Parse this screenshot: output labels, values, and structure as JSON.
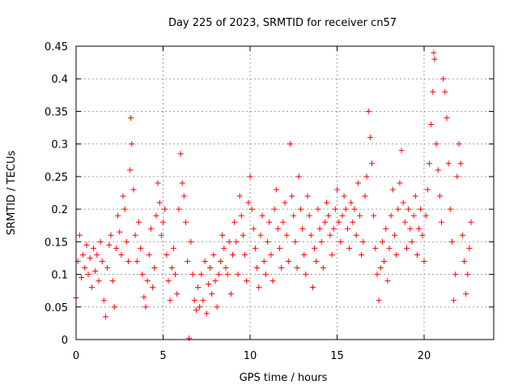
{
  "chart_data": {
    "type": "scatter",
    "title": "Day 225 of 2023, SRMTID for receiver cn57",
    "xlabel": "GPS time / hours",
    "ylabel": "SRMTID / TECUs",
    "xlim": [
      0,
      24
    ],
    "ylim": [
      0,
      0.45
    ],
    "xticks": [
      0,
      5,
      10,
      15,
      20
    ],
    "xtick_labels": [
      "0",
      "5",
      "10",
      "15",
      "20"
    ],
    "yticks": [
      0,
      0.05,
      0.1,
      0.15,
      0.2,
      0.25,
      0.3,
      0.35,
      0.4,
      0.45
    ],
    "ytick_labels": [
      "0",
      "0.05",
      "0.1",
      "0.15",
      "0.2",
      "0.25",
      "0.3",
      "0.35",
      "0.4",
      "0.45"
    ],
    "grid": true,
    "marker": "+",
    "marker_color": "#ff0000",
    "series": [
      {
        "name": "SRMTID",
        "points": [
          [
            0.0,
            0.064
          ],
          [
            0.1,
            0.12
          ],
          [
            0.2,
            0.16
          ],
          [
            0.3,
            0.095
          ],
          [
            0.4,
            0.13
          ],
          [
            0.5,
            0.11
          ],
          [
            0.6,
            0.145
          ],
          [
            0.7,
            0.1
          ],
          [
            0.8,
            0.125
          ],
          [
            0.9,
            0.08
          ],
          [
            1.0,
            0.14
          ],
          [
            1.1,
            0.105
          ],
          [
            1.2,
            0.13
          ],
          [
            1.3,
            0.09
          ],
          [
            1.4,
            0.15
          ],
          [
            1.5,
            0.12
          ],
          [
            1.6,
            0.06
          ],
          [
            1.7,
            0.035
          ],
          [
            1.8,
            0.11
          ],
          [
            1.9,
            0.145
          ],
          [
            2.0,
            0.16
          ],
          [
            2.1,
            0.09
          ],
          [
            2.2,
            0.05
          ],
          [
            2.3,
            0.14
          ],
          [
            2.4,
            0.19
          ],
          [
            2.5,
            0.165
          ],
          [
            2.6,
            0.13
          ],
          [
            2.7,
            0.22
          ],
          [
            2.8,
            0.2
          ],
          [
            2.9,
            0.15
          ],
          [
            3.0,
            0.12
          ],
          [
            3.1,
            0.26
          ],
          [
            3.15,
            0.34
          ],
          [
            3.2,
            0.3
          ],
          [
            3.3,
            0.23
          ],
          [
            3.4,
            0.16
          ],
          [
            3.5,
            0.12
          ],
          [
            3.6,
            0.18
          ],
          [
            3.7,
            0.14
          ],
          [
            3.8,
            0.1
          ],
          [
            3.9,
            0.065
          ],
          [
            4.0,
            0.05
          ],
          [
            4.1,
            0.09
          ],
          [
            4.2,
            0.13
          ],
          [
            4.3,
            0.17
          ],
          [
            4.4,
            0.08
          ],
          [
            4.5,
            0.11
          ],
          [
            4.6,
            0.19
          ],
          [
            4.7,
            0.24
          ],
          [
            4.8,
            0.21
          ],
          [
            4.9,
            0.16
          ],
          [
            5.0,
            0.18
          ],
          [
            5.1,
            0.2
          ],
          [
            5.2,
            0.13
          ],
          [
            5.3,
            0.09
          ],
          [
            5.4,
            0.06
          ],
          [
            5.5,
            0.11
          ],
          [
            5.6,
            0.14
          ],
          [
            5.7,
            0.1
          ],
          [
            5.8,
            0.07
          ],
          [
            5.9,
            0.2
          ],
          [
            6.0,
            0.285
          ],
          [
            6.1,
            0.24
          ],
          [
            6.2,
            0.22
          ],
          [
            6.3,
            0.18
          ],
          [
            6.4,
            0.12
          ],
          [
            6.5,
            0.002
          ],
          [
            6.6,
            0.15
          ],
          [
            6.7,
            0.1
          ],
          [
            6.8,
            0.06
          ],
          [
            6.9,
            0.045
          ],
          [
            7.0,
            0.08
          ],
          [
            7.1,
            0.05
          ],
          [
            7.2,
            0.1
          ],
          [
            7.3,
            0.06
          ],
          [
            7.4,
            0.12
          ],
          [
            7.5,
            0.04
          ],
          [
            7.6,
            0.085
          ],
          [
            7.7,
            0.11
          ],
          [
            7.8,
            0.07
          ],
          [
            7.9,
            0.13
          ],
          [
            8.0,
            0.09
          ],
          [
            8.1,
            0.05
          ],
          [
            8.2,
            0.1
          ],
          [
            8.3,
            0.12
          ],
          [
            8.4,
            0.16
          ],
          [
            8.5,
            0.14
          ],
          [
            8.6,
            0.11
          ],
          [
            8.7,
            0.1
          ],
          [
            8.8,
            0.15
          ],
          [
            8.9,
            0.07
          ],
          [
            9.0,
            0.13
          ],
          [
            9.1,
            0.18
          ],
          [
            9.2,
            0.15
          ],
          [
            9.3,
            0.1
          ],
          [
            9.4,
            0.22
          ],
          [
            9.5,
            0.19
          ],
          [
            9.6,
            0.16
          ],
          [
            9.7,
            0.13
          ],
          [
            9.8,
            0.09
          ],
          [
            9.9,
            0.21
          ],
          [
            10.0,
            0.25
          ],
          [
            10.1,
            0.2
          ],
          [
            10.2,
            0.17
          ],
          [
            10.3,
            0.14
          ],
          [
            10.4,
            0.11
          ],
          [
            10.5,
            0.08
          ],
          [
            10.6,
            0.16
          ],
          [
            10.7,
            0.19
          ],
          [
            10.8,
            0.12
          ],
          [
            10.9,
            0.1
          ],
          [
            11.0,
            0.15
          ],
          [
            11.1,
            0.18
          ],
          [
            11.2,
            0.13
          ],
          [
            11.3,
            0.09
          ],
          [
            11.4,
            0.2
          ],
          [
            11.5,
            0.23
          ],
          [
            11.6,
            0.17
          ],
          [
            11.7,
            0.14
          ],
          [
            11.8,
            0.11
          ],
          [
            11.9,
            0.18
          ],
          [
            12.0,
            0.21
          ],
          [
            12.1,
            0.16
          ],
          [
            12.2,
            0.12
          ],
          [
            12.3,
            0.3
          ],
          [
            12.4,
            0.22
          ],
          [
            12.5,
            0.19
          ],
          [
            12.6,
            0.15
          ],
          [
            12.7,
            0.11
          ],
          [
            12.8,
            0.25
          ],
          [
            12.9,
            0.2
          ],
          [
            13.0,
            0.17
          ],
          [
            13.1,
            0.13
          ],
          [
            13.2,
            0.1
          ],
          [
            13.3,
            0.22
          ],
          [
            13.4,
            0.19
          ],
          [
            13.5,
            0.16
          ],
          [
            13.6,
            0.08
          ],
          [
            13.7,
            0.14
          ],
          [
            13.8,
            0.12
          ],
          [
            13.9,
            0.2
          ],
          [
            14.0,
            0.17
          ],
          [
            14.1,
            0.15
          ],
          [
            14.2,
            0.11
          ],
          [
            14.3,
            0.18
          ],
          [
            14.4,
            0.21
          ],
          [
            14.5,
            0.19
          ],
          [
            14.6,
            0.16
          ],
          [
            14.7,
            0.13
          ],
          [
            14.8,
            0.17
          ],
          [
            14.9,
            0.2
          ],
          [
            15.0,
            0.23
          ],
          [
            15.1,
            0.18
          ],
          [
            15.2,
            0.15
          ],
          [
            15.3,
            0.19
          ],
          [
            15.4,
            0.22
          ],
          [
            15.5,
            0.2
          ],
          [
            15.6,
            0.17
          ],
          [
            15.7,
            0.14
          ],
          [
            15.8,
            0.21
          ],
          [
            15.9,
            0.18
          ],
          [
            16.0,
            0.2
          ],
          [
            16.1,
            0.16
          ],
          [
            16.2,
            0.24
          ],
          [
            16.3,
            0.19
          ],
          [
            16.4,
            0.13
          ],
          [
            16.5,
            0.15
          ],
          [
            16.6,
            0.22
          ],
          [
            16.7,
            0.25
          ],
          [
            16.8,
            0.35
          ],
          [
            16.9,
            0.31
          ],
          [
            17.0,
            0.27
          ],
          [
            17.1,
            0.19
          ],
          [
            17.2,
            0.14
          ],
          [
            17.3,
            0.1
          ],
          [
            17.4,
            0.06
          ],
          [
            17.5,
            0.11
          ],
          [
            17.6,
            0.15
          ],
          [
            17.7,
            0.12
          ],
          [
            17.8,
            0.17
          ],
          [
            17.9,
            0.09
          ],
          [
            18.0,
            0.14
          ],
          [
            18.1,
            0.19
          ],
          [
            18.2,
            0.23
          ],
          [
            18.3,
            0.16
          ],
          [
            18.4,
            0.13
          ],
          [
            18.5,
            0.2
          ],
          [
            18.6,
            0.24
          ],
          [
            18.7,
            0.29
          ],
          [
            18.8,
            0.21
          ],
          [
            18.9,
            0.18
          ],
          [
            19.0,
            0.14
          ],
          [
            19.1,
            0.2
          ],
          [
            19.2,
            0.17
          ],
          [
            19.3,
            0.15
          ],
          [
            19.4,
            0.19
          ],
          [
            19.5,
            0.22
          ],
          [
            19.6,
            0.13
          ],
          [
            19.7,
            0.17
          ],
          [
            19.8,
            0.2
          ],
          [
            19.9,
            0.16
          ],
          [
            20.0,
            0.12
          ],
          [
            20.1,
            0.19
          ],
          [
            20.2,
            0.23
          ],
          [
            20.3,
            0.27
          ],
          [
            20.4,
            0.33
          ],
          [
            20.5,
            0.38
          ],
          [
            20.55,
            0.44
          ],
          [
            20.6,
            0.43
          ],
          [
            20.7,
            0.3
          ],
          [
            20.8,
            0.26
          ],
          [
            20.9,
            0.22
          ],
          [
            21.0,
            0.18
          ],
          [
            21.1,
            0.4
          ],
          [
            21.2,
            0.38
          ],
          [
            21.3,
            0.34
          ],
          [
            21.4,
            0.27
          ],
          [
            21.5,
            0.2
          ],
          [
            21.6,
            0.15
          ],
          [
            21.7,
            0.06
          ],
          [
            21.8,
            0.1
          ],
          [
            21.9,
            0.25
          ],
          [
            22.0,
            0.3
          ],
          [
            22.1,
            0.27
          ],
          [
            22.2,
            0.16
          ],
          [
            22.3,
            0.12
          ],
          [
            22.4,
            0.07
          ],
          [
            22.5,
            0.1
          ],
          [
            22.6,
            0.14
          ],
          [
            22.7,
            0.18
          ]
        ]
      }
    ]
  }
}
